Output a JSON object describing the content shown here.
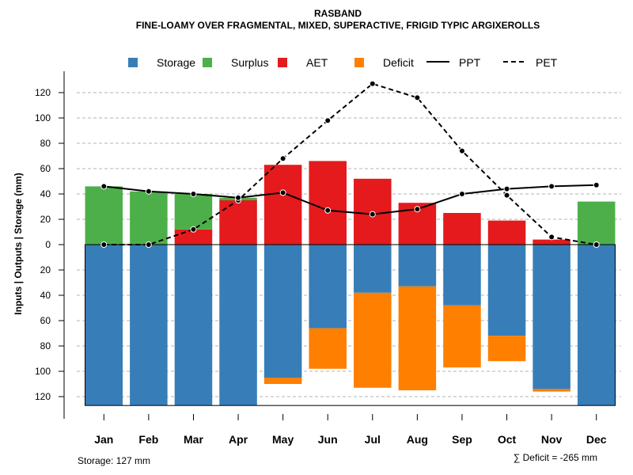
{
  "chart_data": {
    "type": "bar",
    "title": "RASBAND",
    "subtitle": "FINE-LOAMY OVER FRAGMENTAL, MIXED, SUPERACTIVE, FRIGID TYPIC ARGIXEROLLS",
    "ylabel": "Inputs | Outputs | Storage    (mm)",
    "ylim": [
      -127,
      130
    ],
    "yticks": [
      {
        "value": 120,
        "label": "120"
      },
      {
        "value": 100,
        "label": "100"
      },
      {
        "value": 80,
        "label": "80"
      },
      {
        "value": 60,
        "label": "60"
      },
      {
        "value": 40,
        "label": "40"
      },
      {
        "value": 20,
        "label": "20"
      },
      {
        "value": 0,
        "label": "0"
      },
      {
        "value": -20,
        "label": "20"
      },
      {
        "value": -40,
        "label": "40"
      },
      {
        "value": -60,
        "label": "60"
      },
      {
        "value": -80,
        "label": "80"
      },
      {
        "value": -100,
        "label": "100"
      },
      {
        "value": -120,
        "label": "120"
      }
    ],
    "categories": [
      "Jan",
      "Feb",
      "Mar",
      "Apr",
      "May",
      "Jun",
      "Jul",
      "Aug",
      "Sep",
      "Oct",
      "Nov",
      "Dec"
    ],
    "legend": [
      {
        "key": "storage",
        "label": "Storage",
        "kind": "box"
      },
      {
        "key": "surplus",
        "label": "Surplus",
        "kind": "box"
      },
      {
        "key": "aet",
        "label": "AET",
        "kind": "box"
      },
      {
        "key": "deficit",
        "label": "Deficit",
        "kind": "box"
      },
      {
        "key": "ppt",
        "label": "PPT",
        "kind": "solid"
      },
      {
        "key": "pet",
        "label": "PET",
        "kind": "dashed"
      }
    ],
    "colors": {
      "storage": "#377EB8",
      "surplus": "#4DAF4A",
      "aet": "#E41A1C",
      "deficit": "#FF7F00",
      "line": "#000000",
      "grid": "#b3b3b3"
    },
    "series": [
      {
        "name": "Storage",
        "key": "storage",
        "values": [
          127,
          127,
          127,
          127,
          105,
          66,
          38,
          33,
          48,
          72,
          114,
          127
        ]
      },
      {
        "name": "Deficit",
        "key": "deficit",
        "values": [
          0,
          0,
          0,
          0,
          5,
          32,
          75,
          82,
          49,
          20,
          2,
          0
        ]
      },
      {
        "name": "AET",
        "key": "aet",
        "values": [
          0,
          0,
          12,
          35,
          63,
          66,
          52,
          33,
          25,
          19,
          4,
          0
        ]
      },
      {
        "name": "Surplus",
        "key": "surplus",
        "values": [
          46,
          42,
          28,
          2,
          0,
          0,
          0,
          0,
          0,
          0,
          0,
          34
        ]
      },
      {
        "name": "PPT",
        "key": "ppt",
        "values": [
          46,
          42,
          40,
          37,
          41,
          27,
          24,
          28,
          40,
          44,
          46,
          47
        ]
      },
      {
        "name": "PET",
        "key": "pet",
        "values": [
          0,
          0,
          12,
          35,
          68,
          98,
          127,
          116,
          74,
          39,
          6,
          0
        ]
      }
    ],
    "annotations": {
      "storage_note": "Storage: 127 mm",
      "deficit_note": "∑ Deficit = -265 mm"
    }
  }
}
